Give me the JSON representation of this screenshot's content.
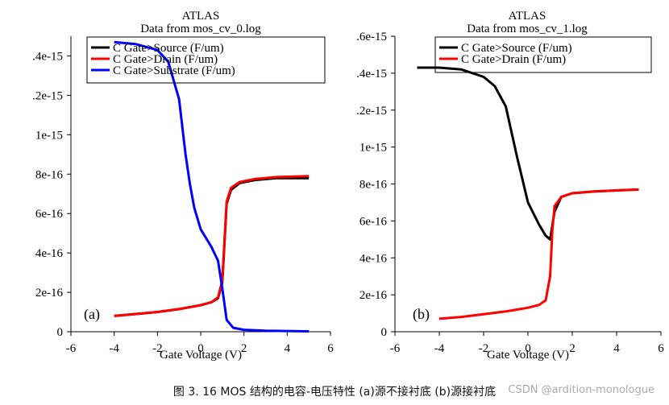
{
  "caption": "图 3. 16 MOS 结构的电容-电压特性 (a)源不接衬底 (b)源接衬底",
  "watermark": "CSDN @ardition-monologue",
  "chart_data": [
    {
      "type": "line",
      "panel_label": "(a)",
      "title": "ATLAS",
      "subtitle": "Data from mos_cv_0.log",
      "xlabel": "Gate Voltage (V)",
      "ylabel": "",
      "xlim": [
        -6,
        6
      ],
      "ylim": [
        0,
        1.5e-15
      ],
      "x_ticks": [
        -6,
        -4,
        -2,
        0,
        2,
        4,
        6
      ],
      "x_tick_labels": [
        "-6",
        "-4",
        "-2",
        "0",
        "2",
        "4",
        "6"
      ],
      "y_ticks": [
        0,
        2e-16,
        4e-16,
        6e-16,
        8e-16,
        1e-15,
        1.2e-15,
        1.4e-15
      ],
      "y_tick_labels": [
        "0",
        "2e-16",
        "4e-16",
        "6e-16",
        "8e-16",
        "1e-15",
        ".2e-15",
        ".4e-15"
      ],
      "grid": false,
      "legend_position": "top",
      "series": [
        {
          "name": "C Gate>Source (F/um)",
          "color": "#000000",
          "x": [
            -4,
            -3,
            -2,
            -1,
            0,
            0.5,
            0.8,
            1.0,
            1.1,
            1.2,
            1.4,
            1.8,
            2.5,
            3.5,
            5
          ],
          "y": [
            8e-17,
            9e-17,
            1e-16,
            1.15e-16,
            1.35e-16,
            1.5e-16,
            1.7e-16,
            2.5e-16,
            4.5e-16,
            6.5e-16,
            7.2e-16,
            7.55e-16,
            7.7e-16,
            7.8e-16,
            7.8e-16
          ]
        },
        {
          "name": "C Gate>Drain (F/um)",
          "color": "#ff0000",
          "x": [
            -4,
            -3,
            -2,
            -1,
            0,
            0.5,
            0.8,
            1.0,
            1.1,
            1.2,
            1.4,
            1.8,
            2.5,
            3.5,
            5
          ],
          "y": [
            8e-17,
            9e-17,
            1e-16,
            1.15e-16,
            1.35e-16,
            1.5e-16,
            1.75e-16,
            2.6e-16,
            4.6e-16,
            6.6e-16,
            7.3e-16,
            7.6e-16,
            7.75e-16,
            7.85e-16,
            7.9e-16
          ]
        },
        {
          "name": "C Gate>Substrate (F/um)",
          "color": "#0000ff",
          "x": [
            -4,
            -3,
            -2,
            -1.5,
            -1,
            -0.7,
            -0.5,
            -0.3,
            0,
            0.5,
            0.8,
            1.0,
            1.2,
            1.5,
            2,
            3,
            5
          ],
          "y": [
            1.47e-15,
            1.46e-15,
            1.43e-15,
            1.37e-15,
            1.18e-15,
            9e-16,
            7.5e-16,
            6.3e-16,
            5.2e-16,
            4.3e-16,
            3.6e-16,
            2.2e-16,
            6e-17,
            2e-17,
            1e-17,
            5e-18,
            2e-18
          ]
        }
      ]
    },
    {
      "type": "line",
      "panel_label": "(b)",
      "title": "ATLAS",
      "subtitle": "Data from mos_cv_1.log",
      "xlabel": "Gate Voltage (V)",
      "ylabel": "",
      "xlim": [
        -6,
        6
      ],
      "ylim": [
        0,
        1.6e-15
      ],
      "x_ticks": [
        -6,
        -4,
        -2,
        0,
        2,
        4,
        6
      ],
      "x_tick_labels": [
        "-6",
        "-4",
        "-2",
        "0",
        "2",
        "4",
        "6"
      ],
      "y_ticks": [
        0,
        2e-16,
        4e-16,
        6e-16,
        8e-16,
        1e-15,
        1.2e-15,
        1.4e-15,
        1.6e-15
      ],
      "y_tick_labels": [
        "0",
        "2e-16",
        "4e-16",
        "6e-16",
        "8e-16",
        "1e-15",
        ".2e-15",
        ".4e-15",
        ".6e-15"
      ],
      "grid": false,
      "legend_position": "top",
      "series": [
        {
          "name": "C Gate>Source (F/um)",
          "color": "#000000",
          "x": [
            -5,
            -4,
            -3,
            -2,
            -1.5,
            -1,
            -0.5,
            0,
            0.5,
            0.8,
            1.0,
            1.2,
            1.5,
            2,
            3,
            5
          ],
          "y": [
            1.43e-15,
            1.43e-15,
            1.42e-15,
            1.38e-15,
            1.33e-15,
            1.22e-15,
            9.5e-16,
            7e-16,
            5.8e-16,
            5.2e-16,
            5e-16,
            6.5e-16,
            7.3e-16,
            7.5e-16,
            7.6e-16,
            7.7e-16
          ]
        },
        {
          "name": "C Gate>Drain (F/um)",
          "color": "#ff0000",
          "x": [
            -4,
            -3,
            -2,
            -1,
            0,
            0.5,
            0.8,
            1.0,
            1.1,
            1.2,
            1.5,
            2,
            3,
            5
          ],
          "y": [
            7e-17,
            8e-17,
            9.5e-17,
            1.1e-16,
            1.3e-16,
            1.45e-16,
            1.7e-16,
            3e-16,
            5.5e-16,
            6.8e-16,
            7.3e-16,
            7.5e-16,
            7.6e-16,
            7.7e-16
          ]
        }
      ]
    }
  ]
}
